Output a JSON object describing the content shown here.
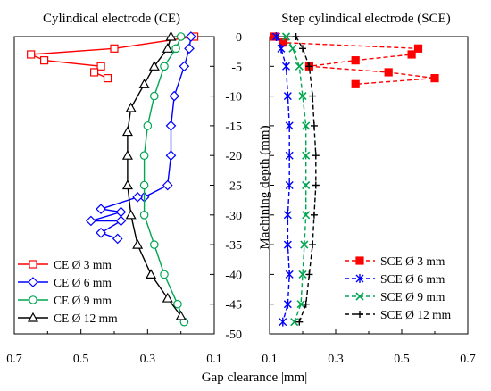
{
  "axis_label_x": "Gap clearance |mm|",
  "axis_label_y": "Machining depth (mm)",
  "chart_data": [
    {
      "type": "line",
      "title": "Cylindical electrode (CE)",
      "xlabel": "Gap clearance |mm|",
      "ylabel": "Machining depth (mm)",
      "xlim": [
        0.7,
        0.1
      ],
      "x_reversed": true,
      "ylim": [
        -50,
        0
      ],
      "x_ticks": [
        "0.7",
        "0.5",
        "0.3",
        "0.1"
      ],
      "y_ticks": [
        "0",
        "-5",
        "-10",
        "-15",
        "-20",
        "-25",
        "-30",
        "-35",
        "-40",
        "-45",
        "-50"
      ],
      "y_tick_values": [
        0,
        -5,
        -10,
        -15,
        -20,
        -25,
        -30,
        -35,
        -40,
        -45,
        -50
      ],
      "legend_position": "bottom-left",
      "series": [
        {
          "name": "CE Ø 3 mm",
          "color": "#ff0000",
          "marker": "square",
          "dash": "solid",
          "points": [
            [
              0.16,
              0
            ],
            [
              0.4,
              -2
            ],
            [
              0.65,
              -3
            ],
            [
              0.61,
              -4
            ],
            [
              0.44,
              -5
            ],
            [
              0.46,
              -6
            ],
            [
              0.42,
              -7
            ]
          ]
        },
        {
          "name": "CE Ø 6 mm",
          "color": "#0000ff",
          "marker": "diamond",
          "dash": "solid",
          "points": [
            [
              0.17,
              0
            ],
            [
              0.175,
              -2
            ],
            [
              0.19,
              -5
            ],
            [
              0.22,
              -10
            ],
            [
              0.23,
              -15
            ],
            [
              0.23,
              -20
            ],
            [
              0.24,
              -25
            ],
            [
              0.31,
              -27
            ],
            [
              0.33,
              -27
            ],
            [
              0.44,
              -29
            ],
            [
              0.38,
              -29.5
            ],
            [
              0.47,
              -31
            ],
            [
              0.38,
              -31
            ],
            [
              0.44,
              -33
            ],
            [
              0.39,
              -34
            ]
          ]
        },
        {
          "name": "CE Ø 9 mm",
          "color": "#00a651",
          "marker": "circle",
          "dash": "solid",
          "points": [
            [
              0.2,
              0
            ],
            [
              0.215,
              -2
            ],
            [
              0.25,
              -5
            ],
            [
              0.28,
              -10
            ],
            [
              0.3,
              -15
            ],
            [
              0.31,
              -20
            ],
            [
              0.31,
              -25
            ],
            [
              0.31,
              -30
            ],
            [
              0.28,
              -35
            ],
            [
              0.25,
              -40
            ],
            [
              0.21,
              -45
            ],
            [
              0.19,
              -48
            ]
          ]
        },
        {
          "name": "CE Ø 12 mm",
          "color": "#000000",
          "marker": "triangle",
          "dash": "solid",
          "points": [
            [
              0.23,
              0
            ],
            [
              0.24,
              -2
            ],
            [
              0.28,
              -5
            ],
            [
              0.31,
              -8
            ],
            [
              0.35,
              -12
            ],
            [
              0.36,
              -16
            ],
            [
              0.36,
              -20
            ],
            [
              0.36,
              -25
            ],
            [
              0.35,
              -30
            ],
            [
              0.33,
              -35
            ],
            [
              0.29,
              -40
            ],
            [
              0.24,
              -44
            ],
            [
              0.2,
              -47
            ]
          ]
        }
      ]
    },
    {
      "type": "line",
      "title": "Step cylindical electrode (SCE)",
      "xlabel": "Gap clearance |mm|",
      "ylabel": "Machining depth (mm)",
      "xlim": [
        0.1,
        0.7
      ],
      "ylim": [
        -50,
        0
      ],
      "x_ticks": [
        "0.1",
        "0.3",
        "0.5",
        "0.7"
      ],
      "legend_position": "bottom-right",
      "series": [
        {
          "name": "SCE Ø 3 mm",
          "color": "#ff0000",
          "marker": "filled-square",
          "dash": "dashed",
          "points": [
            [
              0.115,
              0
            ],
            [
              0.14,
              -1
            ],
            [
              0.55,
              -2
            ],
            [
              0.53,
              -3
            ],
            [
              0.36,
              -4
            ],
            [
              0.22,
              -5
            ],
            [
              0.46,
              -6
            ],
            [
              0.6,
              -7
            ],
            [
              0.36,
              -8
            ]
          ]
        },
        {
          "name": "SCE Ø 6 mm",
          "color": "#0000ff",
          "marker": "asterisk",
          "dash": "dashed",
          "points": [
            [
              0.12,
              0
            ],
            [
              0.135,
              -2
            ],
            [
              0.15,
              -5
            ],
            [
              0.155,
              -10
            ],
            [
              0.16,
              -15
            ],
            [
              0.16,
              -20
            ],
            [
              0.16,
              -25
            ],
            [
              0.155,
              -30
            ],
            [
              0.155,
              -35
            ],
            [
              0.16,
              -40
            ],
            [
              0.155,
              -45
            ],
            [
              0.14,
              -48
            ]
          ]
        },
        {
          "name": "SCE Ø 9 mm",
          "color": "#00a651",
          "marker": "x",
          "dash": "dashed",
          "points": [
            [
              0.15,
              0
            ],
            [
              0.17,
              -2
            ],
            [
              0.19,
              -5
            ],
            [
              0.2,
              -10
            ],
            [
              0.21,
              -15
            ],
            [
              0.21,
              -20
            ],
            [
              0.21,
              -25
            ],
            [
              0.21,
              -30
            ],
            [
              0.205,
              -35
            ],
            [
              0.2,
              -40
            ],
            [
              0.195,
              -45
            ],
            [
              0.175,
              -48
            ]
          ]
        },
        {
          "name": "SCE Ø 12 mm",
          "color": "#000000",
          "marker": "plus",
          "dash": "dashed",
          "points": [
            [
              0.18,
              0
            ],
            [
              0.2,
              -2
            ],
            [
              0.22,
              -5
            ],
            [
              0.23,
              -10
            ],
            [
              0.235,
              -15
            ],
            [
              0.24,
              -20
            ],
            [
              0.24,
              -25
            ],
            [
              0.235,
              -30
            ],
            [
              0.23,
              -35
            ],
            [
              0.22,
              -40
            ],
            [
              0.21,
              -45
            ],
            [
              0.19,
              -48
            ]
          ]
        }
      ]
    }
  ]
}
